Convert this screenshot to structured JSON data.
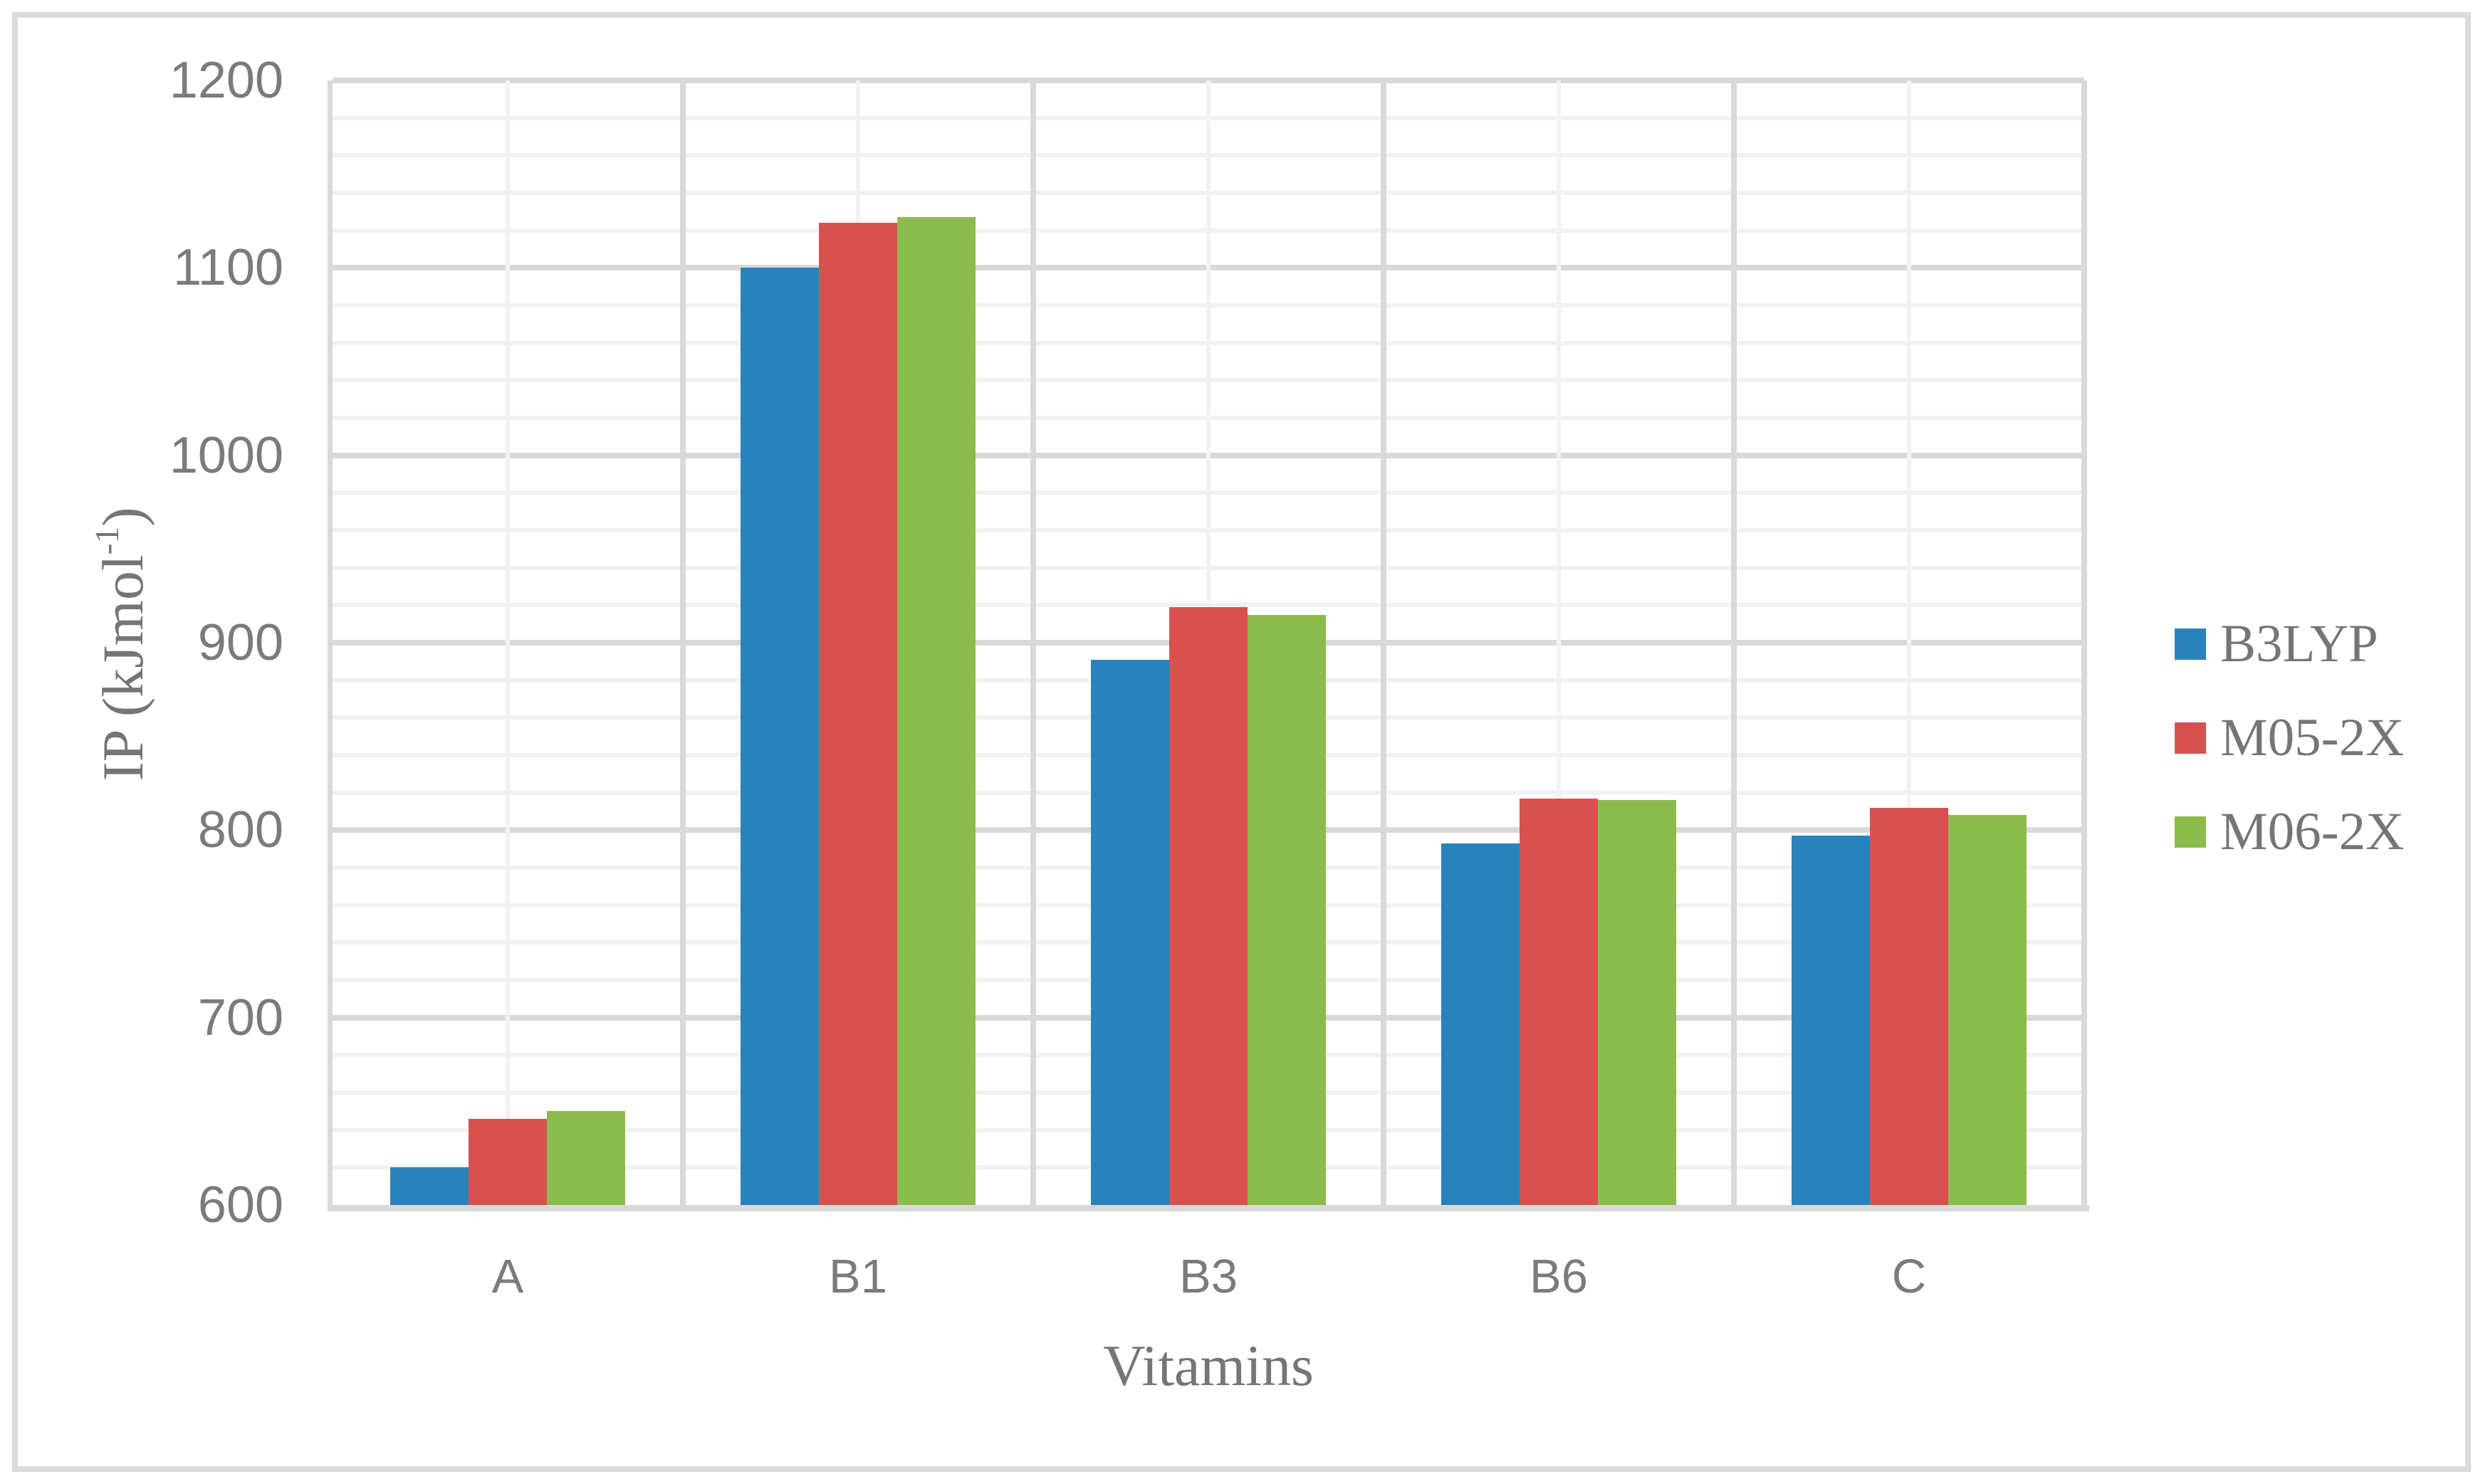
{
  "chart_data": {
    "type": "bar",
    "categories": [
      "A",
      "B1",
      "B3",
      "B6",
      "C"
    ],
    "series": [
      {
        "name": "B3LYP",
        "color": "#2A82BC",
        "values": [
          620,
          1100,
          891,
          793,
          797
        ]
      },
      {
        "name": "M05-2X",
        "color": "#D8514E",
        "values": [
          646,
          1124,
          919,
          817,
          812
        ]
      },
      {
        "name": "M06-2X",
        "color": "#8CBB4D",
        "values": [
          650,
          1127,
          915,
          816,
          808
        ]
      }
    ],
    "title": "",
    "xlabel": "Vitamins",
    "ylabel": "IP (kJmol-1)",
    "ylabel_parts": {
      "base": "IP (kJmol",
      "sup": "-1",
      "close": ")"
    },
    "ylim": [
      600,
      1200
    ],
    "y_major_step": 100,
    "y_minor_step": 20,
    "y_ticks": [
      600,
      700,
      800,
      900,
      1000,
      1100,
      1200
    ],
    "grid": {
      "horizontal": "major+minor",
      "vertical": "major+minor"
    },
    "legend_position": "right"
  },
  "styles": {
    "background": "#FFFFFF",
    "figure_border_color": "#DBDBDB",
    "axis_color": "#D9D9D9",
    "grid_major_color": "#D9D9D9",
    "grid_minor_color": "#F2F2F2",
    "tick_text_color": "#7B7B7B",
    "title_text_color": "#767676"
  }
}
